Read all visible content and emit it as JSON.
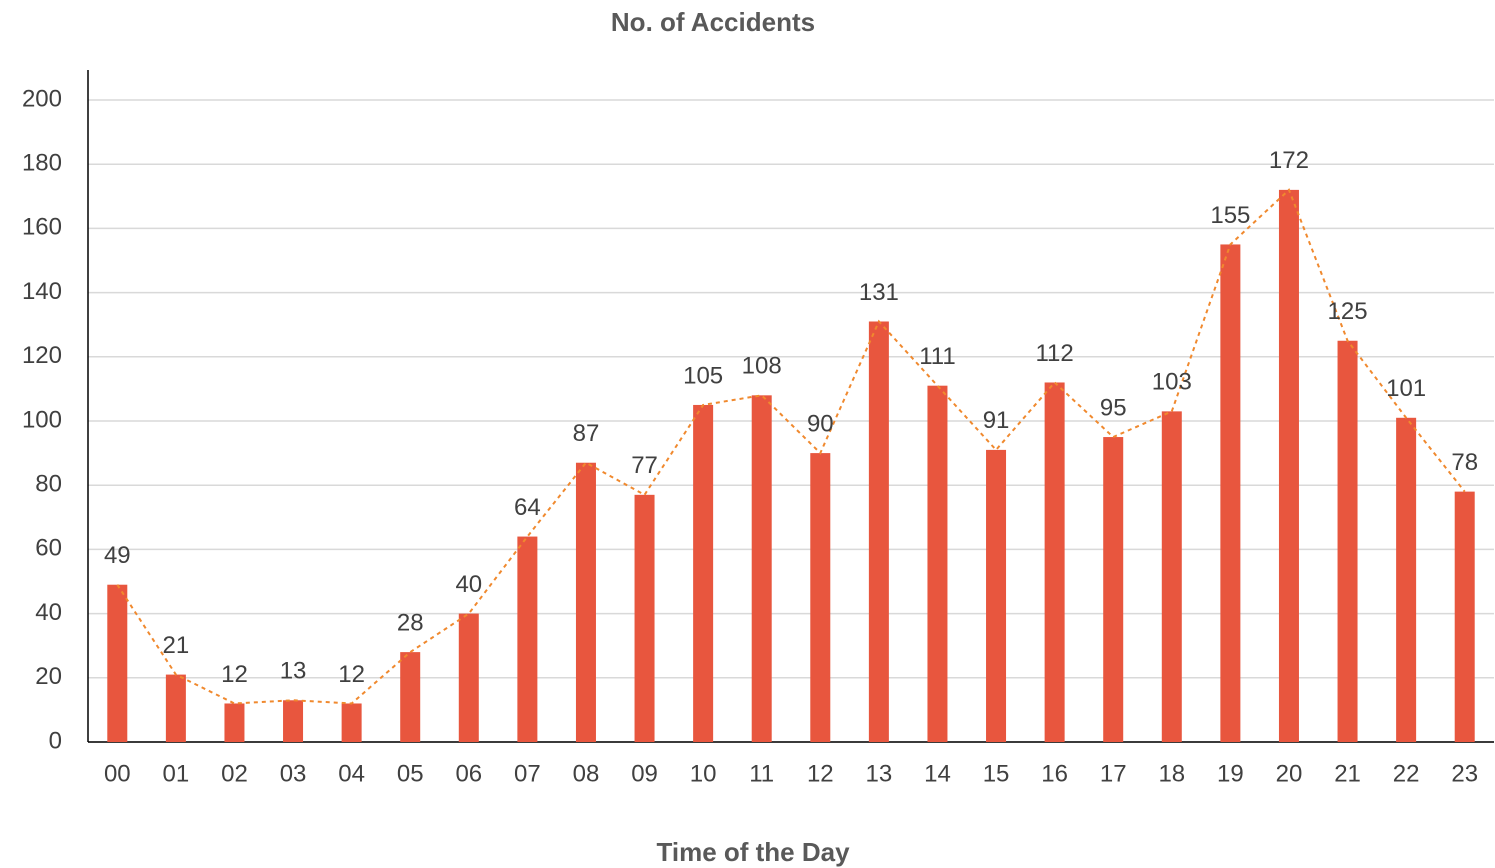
{
  "chart_data": {
    "type": "bar",
    "title": "No. of Accidents",
    "x_label": "Time of the Day",
    "categories": [
      "00",
      "01",
      "02",
      "03",
      "04",
      "05",
      "06",
      "07",
      "08",
      "09",
      "10",
      "11",
      "12",
      "13",
      "14",
      "15",
      "16",
      "17",
      "18",
      "19",
      "20",
      "21",
      "22",
      "23"
    ],
    "values": [
      49,
      21,
      12,
      13,
      12,
      28,
      40,
      64,
      87,
      77,
      105,
      108,
      90,
      131,
      111,
      91,
      112,
      95,
      103,
      155,
      172,
      125,
      101,
      78
    ],
    "color": "#e8563e",
    "line_color": "#f0892e",
    "ylim": [
      0,
      200
    ],
    "yticks": [
      0,
      20,
      40,
      60,
      80,
      100,
      120,
      140,
      160,
      180,
      200
    ],
    "grid": true
  }
}
